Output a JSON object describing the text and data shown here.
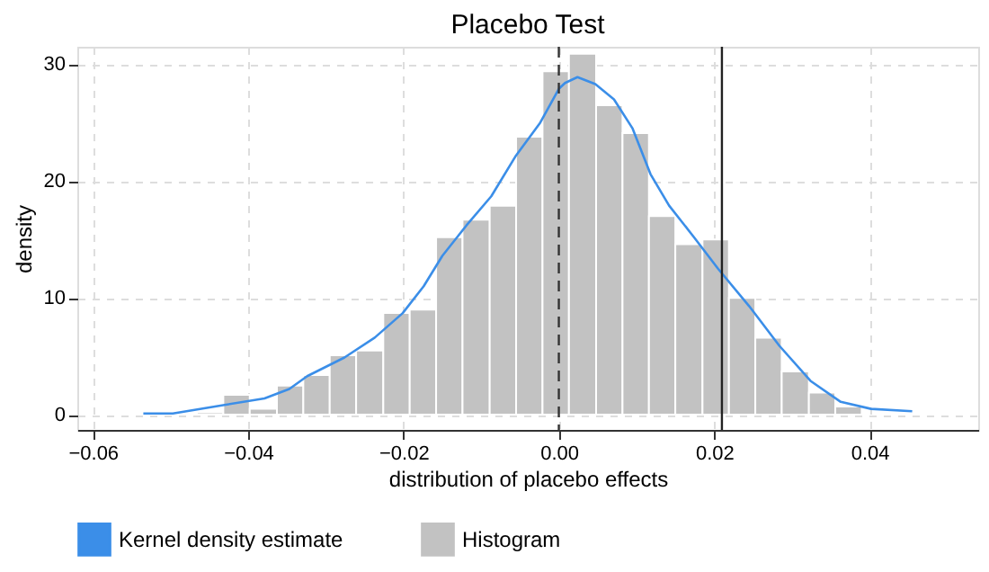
{
  "chart_data": {
    "type": "histogram",
    "title": "Placebo Test",
    "xlabel": "distribution of placebo effects",
    "ylabel": "density",
    "bins": [
      -0.0466,
      -0.0432,
      -0.0398,
      -0.0363,
      -0.0329,
      -0.0295,
      -0.0261,
      -0.0226,
      -0.0192,
      -0.0158,
      -0.0124,
      -0.0089,
      -0.0055,
      -0.0021,
      0.0013,
      0.0048,
      0.0082,
      0.0116,
      0.015,
      0.0185,
      0.0219,
      0.0253,
      0.0287,
      0.0322,
      0.0356,
      0.039
    ],
    "series": [
      {
        "name": "Kernel density estimate",
        "type": "line",
        "color": "#3b8ee8",
        "x": [
          -0.0535,
          -0.0497,
          -0.0434,
          -0.0379,
          -0.0347,
          -0.0324,
          -0.0276,
          -0.0237,
          -0.0201,
          -0.0174,
          -0.015,
          -0.0119,
          -0.0087,
          -0.0056,
          -0.0024,
          0.0,
          0.0008,
          0.0024,
          0.0047,
          0.0071,
          0.0095,
          0.0118,
          0.0142,
          0.0174,
          0.0205,
          0.0245,
          0.0284,
          0.0324,
          0.0363,
          0.0402,
          0.0455
        ],
        "values": [
          0.1,
          0.1,
          0.8,
          1.4,
          2.2,
          3.3,
          4.9,
          6.6,
          8.7,
          11.0,
          13.6,
          16.2,
          18.7,
          22.1,
          25.0,
          27.9,
          28.4,
          28.9,
          28.3,
          27.0,
          24.5,
          20.6,
          17.9,
          15.2,
          12.5,
          9.3,
          5.9,
          2.9,
          1.1,
          0.5,
          0.3
        ]
      },
      {
        "name": "Histogram",
        "color": "#c2c2c2",
        "values": [
          0.2,
          1.7,
          0.5,
          2.5,
          3.4,
          5.1,
          5.5,
          8.7,
          9.0,
          15.2,
          16.7,
          17.9,
          23.8,
          29.4,
          30.9,
          26.5,
          24.1,
          17.0,
          14.6,
          15.0,
          10.0,
          6.6,
          3.7,
          1.9,
          0.7
        ]
      }
    ],
    "ref_lines": [
      {
        "axis": "x",
        "value": 0,
        "line_style": "dashed",
        "color": "#333333"
      },
      {
        "axis": "x",
        "value": 0.021,
        "line_style": "solid",
        "color": "#222222"
      }
    ],
    "xlim": [
      -0.062,
      0.054
    ],
    "ylim": [
      -1.3,
      31.5
    ],
    "xticks": [
      {
        "value": -0.06,
        "label": "−0.06"
      },
      {
        "value": -0.04,
        "label": "−0.04"
      },
      {
        "value": -0.02,
        "label": "−0.02"
      },
      {
        "value": 0,
        "label": "0.00"
      },
      {
        "value": 0.02,
        "label": "0.02"
      },
      {
        "value": 0.04,
        "label": "0.04"
      }
    ],
    "yticks": [
      0,
      10,
      20,
      30
    ],
    "grid": true,
    "legend": "bottom"
  }
}
